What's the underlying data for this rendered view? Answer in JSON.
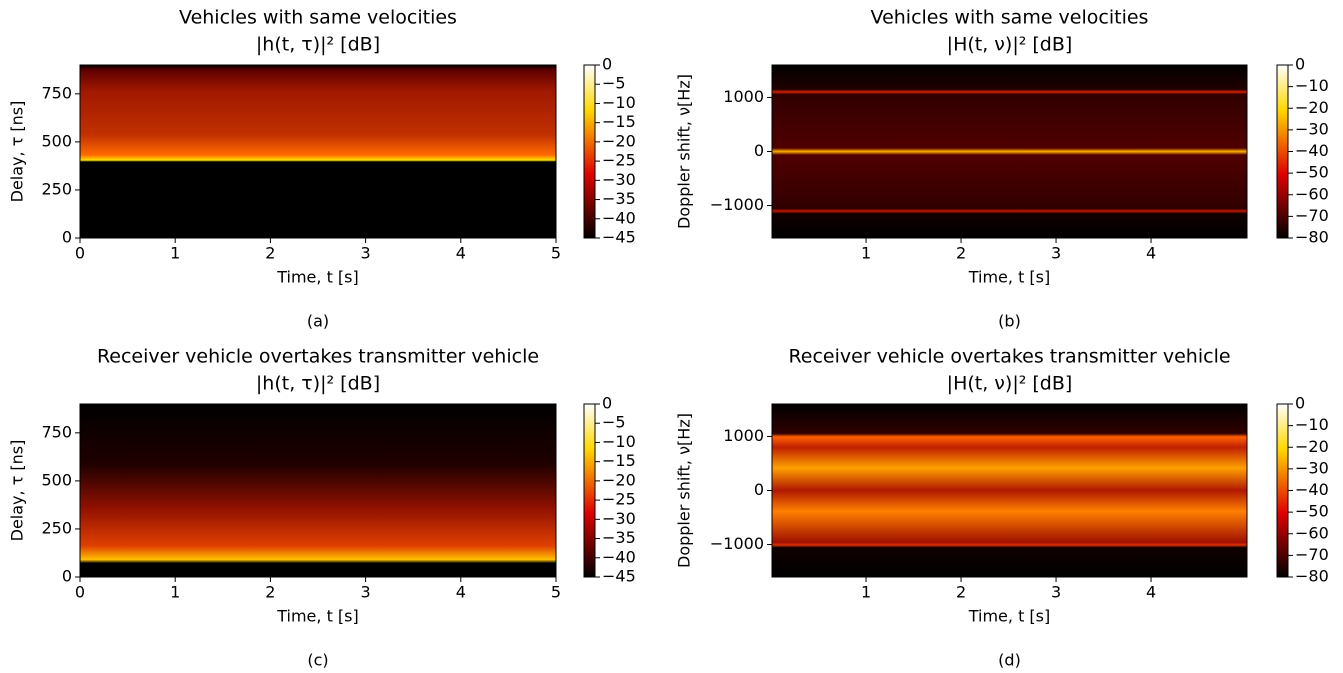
{
  "chart_data": [
    {
      "type": "heatmap",
      "title": "Vehicles with same velocities",
      "subtitle": "|h(t, τ)|² [dB]",
      "caption": "(a)",
      "xlabel": "Time, t [s]",
      "ylabel": "Delay, τ [ns]",
      "colormap": "hot",
      "xlim": [
        0,
        5
      ],
      "xticks": [
        0,
        1,
        2,
        3,
        4,
        5
      ],
      "ylim": [
        0,
        900
      ],
      "yticks": [
        0,
        250,
        500,
        750
      ],
      "clim": [
        -45,
        0
      ],
      "cticks": [
        0,
        {
          "value": -5,
          "label": "−5"
        },
        {
          "value": -10,
          "label": "−10"
        },
        {
          "value": -15,
          "label": "−15"
        },
        {
          "value": -20,
          "label": "−20"
        },
        {
          "value": -25,
          "label": "−25"
        },
        {
          "value": -30,
          "label": "−30"
        },
        {
          "value": -35,
          "label": "−35"
        },
        {
          "value": -40,
          "label": "−40"
        },
        {
          "value": -45,
          "label": "−45"
        }
      ]
    },
    {
      "type": "heatmap",
      "title": "Vehicles with same velocities",
      "subtitle": "|H(t, ν)|² [dB]",
      "caption": "(b)",
      "xlabel": "Time, t [s]",
      "ylabel": "Doppler shift, ν[Hz]",
      "colormap": "hot",
      "xlim": [
        0.01,
        5.01
      ],
      "xticks": [
        1,
        2,
        3,
        4
      ],
      "ylim": [
        -1600,
        1600
      ],
      "yticks": [
        {
          "value": -1000,
          "label": "−1000"
        },
        0,
        1000
      ],
      "clim": [
        -80,
        0
      ],
      "cticks": [
        0,
        {
          "value": -10,
          "label": "−10"
        },
        {
          "value": -20,
          "label": "−20"
        },
        {
          "value": -30,
          "label": "−30"
        },
        {
          "value": -40,
          "label": "−40"
        },
        {
          "value": -50,
          "label": "−50"
        },
        {
          "value": -60,
          "label": "−60"
        },
        {
          "value": -70,
          "label": "−70"
        },
        {
          "value": -80,
          "label": "−80"
        }
      ]
    },
    {
      "type": "heatmap",
      "title": "Receiver vehicle overtakes transmitter vehicle",
      "subtitle": "|h(t, τ)|² [dB]",
      "caption": "(c)",
      "xlabel": "Time, t [s]",
      "ylabel": "Delay, τ [ns]",
      "colormap": "hot",
      "xlim": [
        0,
        5
      ],
      "xticks": [
        0,
        1,
        2,
        3,
        4,
        5
      ],
      "ylim": [
        0,
        900
      ],
      "yticks": [
        0,
        250,
        500,
        750
      ],
      "clim": [
        -45,
        0
      ],
      "cticks": [
        0,
        {
          "value": -5,
          "label": "−5"
        },
        {
          "value": -10,
          "label": "−10"
        },
        {
          "value": -15,
          "label": "−15"
        },
        {
          "value": -20,
          "label": "−20"
        },
        {
          "value": -25,
          "label": "−25"
        },
        {
          "value": -30,
          "label": "−30"
        },
        {
          "value": -35,
          "label": "−35"
        },
        {
          "value": -40,
          "label": "−40"
        },
        {
          "value": -45,
          "label": "−45"
        }
      ]
    },
    {
      "type": "heatmap",
      "title": "Receiver vehicle overtakes transmitter vehicle",
      "subtitle": "|H(t, ν)|² [dB]",
      "caption": "(d)",
      "xlabel": "Time, t [s]",
      "ylabel": "Doppler shift, ν[Hz]",
      "colormap": "hot",
      "xlim": [
        0.01,
        5.01
      ],
      "xticks": [
        1,
        2,
        3,
        4
      ],
      "ylim": [
        -1600,
        1600
      ],
      "yticks": [
        {
          "value": -1000,
          "label": "−1000"
        },
        0,
        1000
      ],
      "clim": [
        -80,
        0
      ],
      "cticks": [
        0,
        {
          "value": -10,
          "label": "−10"
        },
        {
          "value": -20,
          "label": "−20"
        },
        {
          "value": -30,
          "label": "−30"
        },
        {
          "value": -40,
          "label": "−40"
        },
        {
          "value": -50,
          "label": "−50"
        },
        {
          "value": -60,
          "label": "−60"
        },
        {
          "value": -70,
          "label": "−70"
        },
        {
          "value": -80,
          "label": "−80"
        }
      ]
    }
  ]
}
